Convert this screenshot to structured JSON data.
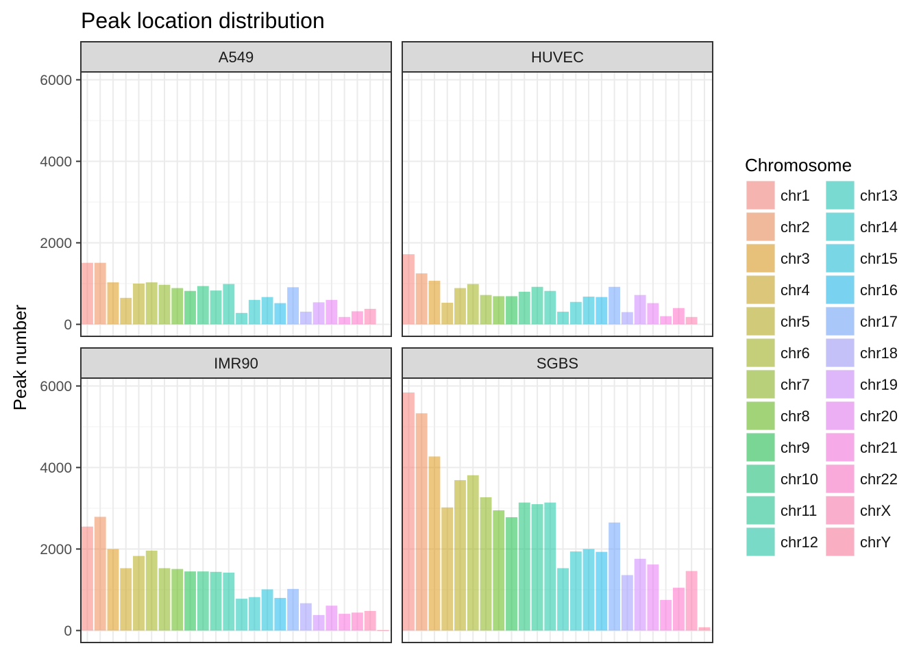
{
  "chart_data": {
    "type": "bar",
    "title": "Peak location distribution",
    "ylabel": "Peak number",
    "xlabel": "",
    "ylim": [
      0,
      6000
    ],
    "yticks": [
      0,
      2000,
      4000,
      6000
    ],
    "grid": true,
    "legend_position": "right",
    "legend_title": "Chromosome",
    "categories": [
      "chr1",
      "chr2",
      "chr3",
      "chr4",
      "chr5",
      "chr6",
      "chr7",
      "chr8",
      "chr9",
      "chr10",
      "chr11",
      "chr12",
      "chr13",
      "chr14",
      "chr15",
      "chr16",
      "chr17",
      "chr18",
      "chr19",
      "chr20",
      "chr21",
      "chr22",
      "chrX",
      "chrY"
    ],
    "colors": [
      "#F8766D",
      "#EE8043",
      "#DB8E00",
      "#C59900",
      "#B0A100",
      "#97A900",
      "#7CAE00",
      "#53B400",
      "#00BA38",
      "#00BE67",
      "#00BF84",
      "#00C19C",
      "#00C1B2",
      "#00BFC4",
      "#00BBD8",
      "#00B2EB",
      "#619CFF",
      "#9590FF",
      "#C77CFF",
      "#E76BF3",
      "#FA62DB",
      "#FF61C3",
      "#FF6AA3",
      "#FF6C90"
    ],
    "panels": [
      {
        "name": "A549",
        "values": [
          1510,
          1510,
          1030,
          650,
          1000,
          1030,
          970,
          890,
          820,
          940,
          830,
          990,
          280,
          600,
          670,
          520,
          910,
          310,
          540,
          600,
          180,
          320,
          380,
          0
        ]
      },
      {
        "name": "HUVEC",
        "values": [
          1720,
          1250,
          1070,
          530,
          890,
          990,
          720,
          690,
          690,
          800,
          920,
          820,
          310,
          550,
          680,
          670,
          920,
          300,
          720,
          520,
          200,
          400,
          180,
          0
        ]
      },
      {
        "name": "IMR90",
        "values": [
          2550,
          2790,
          2000,
          1530,
          1830,
          1960,
          1530,
          1510,
          1450,
          1450,
          1440,
          1420,
          780,
          820,
          1010,
          800,
          1020,
          670,
          380,
          610,
          410,
          440,
          480,
          10
        ]
      },
      {
        "name": "SGBS",
        "values": [
          5840,
          5330,
          4270,
          3020,
          3690,
          3810,
          3270,
          2950,
          2780,
          3140,
          3100,
          3140,
          1530,
          1940,
          2000,
          1930,
          2650,
          1360,
          1760,
          1620,
          750,
          1050,
          1460,
          80
        ]
      }
    ]
  }
}
